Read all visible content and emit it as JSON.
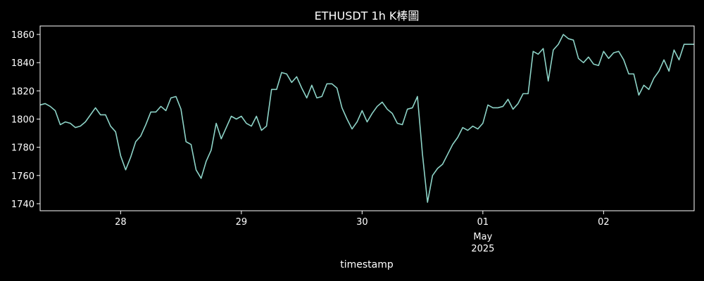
{
  "chart_data": {
    "type": "line",
    "title": "ETHUSDT 1h K棒圖",
    "xlabel": "timestamp",
    "ylabel": "",
    "ylim": [
      1735,
      1866
    ],
    "yticks": [
      1740,
      1760,
      1780,
      1800,
      1820,
      1840,
      1860
    ],
    "xticks": [
      {
        "index": 16,
        "label": "28",
        "sublabel": ""
      },
      {
        "index": 40,
        "label": "29",
        "sublabel": ""
      },
      {
        "index": 64,
        "label": "30",
        "sublabel": ""
      },
      {
        "index": 88,
        "label": "01",
        "sublabel": "May\n2025"
      },
      {
        "index": 112,
        "label": "02",
        "sublabel": ""
      }
    ],
    "grid": false,
    "line_color": "#8dd3c7",
    "series": [
      {
        "values": [
          1810,
          1811,
          1809,
          1806,
          1796,
          1798,
          1797,
          1794,
          1795,
          1798,
          1803,
          1808,
          1803,
          1803,
          1795,
          1791,
          1774,
          1764,
          1773,
          1784,
          1788,
          1796,
          1805,
          1805,
          1809,
          1806,
          1815,
          1816,
          1807,
          1784,
          1782,
          1764,
          1758,
          1770,
          1778,
          1797,
          1786,
          1794,
          1802,
          1800,
          1802,
          1797,
          1795,
          1802,
          1792,
          1795,
          1821,
          1821,
          1833,
          1832,
          1826,
          1830,
          1822,
          1815,
          1824,
          1815,
          1816,
          1825,
          1825,
          1822,
          1808,
          1800,
          1793,
          1798,
          1806,
          1798,
          1804,
          1809,
          1812,
          1807,
          1804,
          1797,
          1796,
          1807,
          1808,
          1816,
          1775,
          1741,
          1760,
          1765,
          1768,
          1775,
          1782,
          1787,
          1794,
          1792,
          1795,
          1793,
          1797,
          1810,
          1808,
          1808,
          1809,
          1814,
          1807,
          1811,
          1818,
          1818,
          1848,
          1846,
          1850,
          1827,
          1849,
          1853,
          1860,
          1857,
          1856,
          1843,
          1840,
          1844,
          1839,
          1838,
          1848,
          1843,
          1847,
          1848,
          1842,
          1832,
          1832,
          1817,
          1824,
          1821,
          1829,
          1834,
          1842,
          1834,
          1849,
          1842,
          1853,
          1853,
          1853
        ]
      }
    ]
  }
}
